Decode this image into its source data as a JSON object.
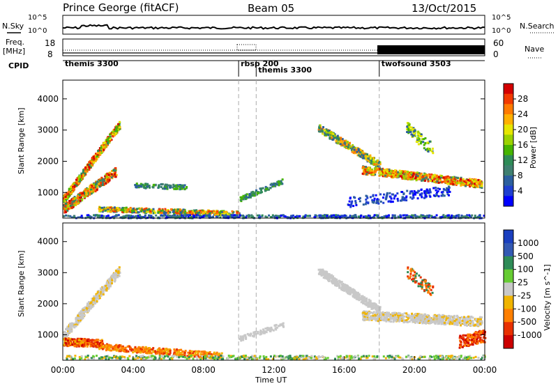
{
  "header": {
    "station": "Prince George (fitACF)",
    "beam": "Beam 05",
    "date": "13/Oct/2015"
  },
  "side_labels": {
    "nsky": "N.Sky",
    "nsearch": "N.Search",
    "freq": "Freq.",
    "freq_unit": "[MHz]",
    "nave": "Nave",
    "cpid": "CPID"
  },
  "noise_panel": {
    "ytick_top": "10^5",
    "ytick_bottom": "10^0"
  },
  "freq_panel": {
    "left_ticks": [
      "18",
      "8"
    ],
    "right_ticks": [
      "60",
      "0"
    ]
  },
  "cpid_segments": [
    {
      "label": "themis 3300",
      "start": 0.0
    },
    {
      "label": "rbsp 200",
      "start": 10.0
    },
    {
      "label": "themis 3300",
      "start": 11.0
    },
    {
      "label": "twofsound 3503",
      "start": 18.0
    }
  ],
  "chart_data": [
    {
      "type": "heatmap",
      "name": "power-panel",
      "xlabel": "",
      "ylabel": "Slant Range [km]",
      "xlim": [
        0,
        24
      ],
      "ylim": [
        180,
        4600
      ],
      "yticks": [
        1000,
        2000,
        3000,
        4000
      ],
      "colorbar": {
        "label": "Power [dB]",
        "ticks": [
          "28",
          "24",
          "20",
          "16",
          "12",
          "8",
          "4"
        ],
        "colors": [
          "#d40000",
          "#f23a00",
          "#ff7a00",
          "#ffb000",
          "#e6e600",
          "#9bd200",
          "#46b400",
          "#2e8b57",
          "#3f7f70",
          "#2c5f9e",
          "#1f3fd0",
          "#0000ff"
        ]
      }
    },
    {
      "type": "heatmap",
      "name": "velocity-panel",
      "xlabel": "Time UT",
      "ylabel": "Slant Range [km]",
      "xlim": [
        0,
        24
      ],
      "ylim": [
        180,
        4600
      ],
      "yticks": [
        1000,
        2000,
        3000,
        4000
      ],
      "xticks": [
        "00:00",
        "04:00",
        "08:00",
        "12:00",
        "16:00",
        "20:00",
        "00:00"
      ],
      "colorbar": {
        "label": "Velocity [m s^-1]",
        "ticks": [
          "1000",
          "500",
          "100",
          "25",
          "-25",
          "-100",
          "-500",
          "-1000"
        ],
        "colors": [
          "#1a3fbf",
          "#3359b3",
          "#2e8b57",
          "#66cc33",
          "#c8c8c8",
          "#f0b400",
          "#ff7f00",
          "#e83000",
          "#cc0000"
        ]
      }
    }
  ]
}
